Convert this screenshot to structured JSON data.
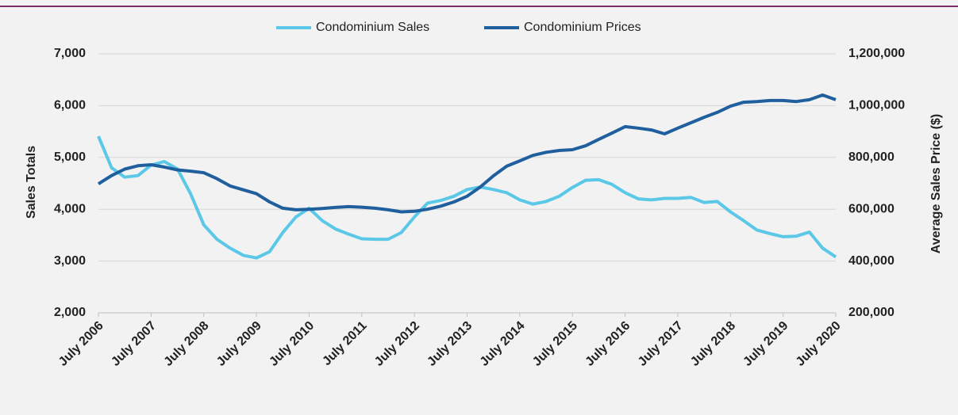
{
  "chart_data": {
    "type": "line",
    "y_label": "Sales Totals",
    "y2_label": "Average Sales Price ($)",
    "x": [
      "2006-07",
      "2006-10",
      "2007-01",
      "2007-04",
      "2007-07",
      "2007-10",
      "2008-01",
      "2008-04",
      "2008-07",
      "2008-10",
      "2009-01",
      "2009-04",
      "2009-07",
      "2009-10",
      "2010-01",
      "2010-04",
      "2010-07",
      "2010-10",
      "2011-01",
      "2011-04",
      "2011-07",
      "2011-10",
      "2012-01",
      "2012-04",
      "2012-07",
      "2012-10",
      "2013-01",
      "2013-04",
      "2013-07",
      "2013-10",
      "2014-01",
      "2014-04",
      "2014-07",
      "2014-10",
      "2015-01",
      "2015-04",
      "2015-07",
      "2015-10",
      "2016-01",
      "2016-04",
      "2016-07",
      "2016-10",
      "2017-01",
      "2017-04",
      "2017-07",
      "2017-10",
      "2018-01",
      "2018-04",
      "2018-07",
      "2018-10",
      "2019-01",
      "2019-04",
      "2019-07",
      "2019-10",
      "2020-01",
      "2020-04",
      "2020-07"
    ],
    "xlim": [
      "2006-07",
      "2020-07"
    ],
    "xticks": [
      {
        "value": "2006-07",
        "label": "July 2006"
      },
      {
        "value": "2007-07",
        "label": "July 2007"
      },
      {
        "value": "2008-07",
        "label": "July 2008"
      },
      {
        "value": "2009-07",
        "label": "July 2009"
      },
      {
        "value": "2010-07",
        "label": "July 2010"
      },
      {
        "value": "2011-07",
        "label": "July 2011"
      },
      {
        "value": "2012-07",
        "label": "July 2012"
      },
      {
        "value": "2013-07",
        "label": "July 2013"
      },
      {
        "value": "2014-07",
        "label": "July 2014"
      },
      {
        "value": "2015-07",
        "label": "July 2015"
      },
      {
        "value": "2016-07",
        "label": "July 2016"
      },
      {
        "value": "2017-07",
        "label": "July 2017"
      },
      {
        "value": "2018-07",
        "label": "July 2018"
      },
      {
        "value": "2019-07",
        "label": "July 2019"
      },
      {
        "value": "2020-07",
        "label": "July 2020"
      }
    ],
    "ylim": [
      2000,
      7000
    ],
    "yticks": [
      {
        "value": 2000,
        "label": "2,000"
      },
      {
        "value": 3000,
        "label": "3,000"
      },
      {
        "value": 4000,
        "label": "4,000"
      },
      {
        "value": 5000,
        "label": "5,000"
      },
      {
        "value": 6000,
        "label": "6,000"
      },
      {
        "value": 7000,
        "label": "7,000"
      }
    ],
    "y2lim": [
      200000,
      1200000
    ],
    "y2ticks": [
      {
        "value": 200000,
        "label": "200,000"
      },
      {
        "value": 400000,
        "label": "400,000"
      },
      {
        "value": 600000,
        "label": "600,000"
      },
      {
        "value": 800000,
        "label": "800,000"
      },
      {
        "value": 1000000,
        "label": "1,000,000"
      },
      {
        "value": 1200000,
        "label": "1,200,000"
      }
    ],
    "grid": true,
    "legend": "top",
    "series": [
      {
        "name": "Condominium Sales",
        "color": "#5bc8e8",
        "values": [
          5410,
          4800,
          4620,
          4650,
          4850,
          4920,
          4780,
          4300,
          3700,
          3420,
          3250,
          3110,
          3060,
          3180,
          3550,
          3850,
          4020,
          3780,
          3620,
          3520,
          3430,
          3420,
          3420,
          3550,
          3850,
          4120,
          4170,
          4250,
          4380,
          4430,
          4380,
          4320,
          4180,
          4100,
          4150,
          4250,
          4420,
          4560,
          4570,
          4480,
          4320,
          4200,
          4180,
          4210,
          4210,
          4230,
          4130,
          4150,
          3950,
          3780,
          3600,
          3530,
          3470,
          3480,
          3560,
          3250,
          3080
        ]
      },
      {
        "name": "Condominium Prices",
        "color": "#1f5f9e",
        "axis": "y2",
        "values": [
          698000,
          730000,
          755000,
          768000,
          772000,
          763000,
          752000,
          747000,
          741000,
          718000,
          690000,
          675000,
          660000,
          628000,
          604000,
          598000,
          600000,
          603000,
          607000,
          610000,
          608000,
          604000,
          598000,
          590000,
          592000,
          600000,
          612000,
          628000,
          650000,
          686000,
          729000,
          766000,
          787000,
          808000,
          820000,
          827000,
          830000,
          845000,
          870000,
          894000,
          919000,
          913000,
          906000,
          891000,
          913000,
          934000,
          955000,
          974000,
          998000,
          1013000,
          1016000,
          1020000,
          1020000,
          1016000,
          1023000,
          1041000,
          1023000
        ]
      }
    ]
  }
}
